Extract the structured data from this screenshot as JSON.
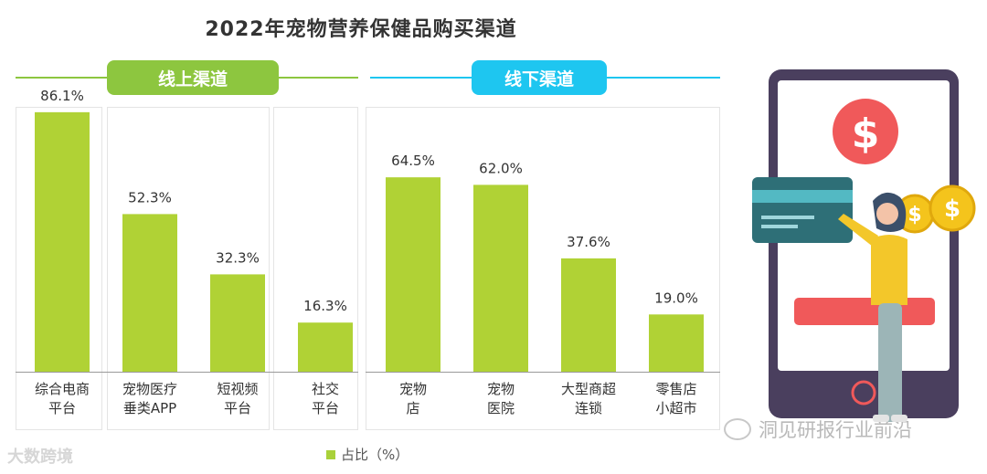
{
  "title": "2022年宠物营养保健品购买渠道",
  "groups": {
    "online": {
      "label": "线上渠道",
      "color": "#8dc63f"
    },
    "offline": {
      "label": "线下渠道",
      "color": "#1ec6f0"
    }
  },
  "legend_label": "占比（%）",
  "watermark_left": "大数跨境",
  "watermark_right": "洞见研报行业前沿",
  "chart_data": {
    "type": "bar",
    "title": "2022年宠物营养保健品购买渠道",
    "categories": [
      "综合电商\n平台",
      "宠物医疗\n垂类APP",
      "短视频\n平台",
      "社交\n平台",
      "宠物\n店",
      "宠物\n医院",
      "大型商超\n连锁",
      "零售店\n小超市"
    ],
    "series": [
      {
        "name": "占比（%）",
        "values": [
          86.1,
          52.3,
          32.3,
          16.3,
          64.5,
          62.0,
          37.6,
          19.0
        ],
        "color": "#b0d235"
      }
    ],
    "value_labels": [
      "86.1%",
      "52.3%",
      "32.3%",
      "16.3%",
      "64.5%",
      "62.0%",
      "37.6%",
      "19.0%"
    ],
    "ylim": [
      0,
      100
    ],
    "grid": false,
    "legend_position": "bottom"
  }
}
